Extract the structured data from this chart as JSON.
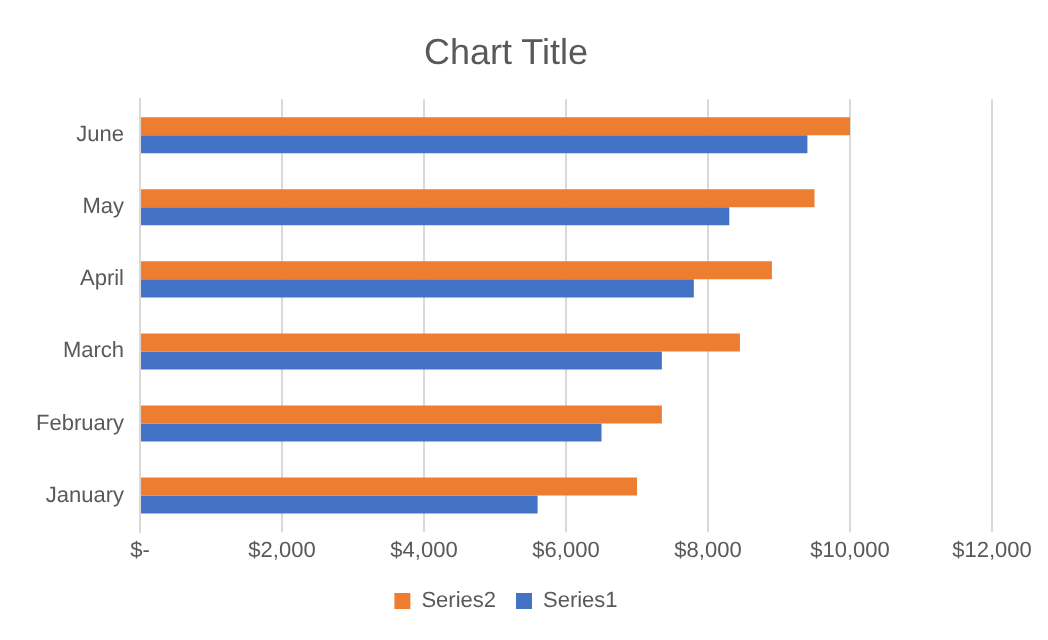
{
  "chart_data": {
    "type": "bar",
    "orientation": "horizontal",
    "title": "Chart Title",
    "categories": [
      "June",
      "May",
      "April",
      "March",
      "February",
      "January"
    ],
    "series": [
      {
        "name": "Series2",
        "color": "#ed7d31",
        "values": [
          10000,
          9500,
          8900,
          8450,
          7350,
          7000
        ]
      },
      {
        "name": "Series1",
        "color": "#4472c4",
        "values": [
          9400,
          8300,
          7800,
          7350,
          6500,
          5600
        ]
      }
    ],
    "xlim": [
      0,
      12000
    ],
    "xticks": [
      {
        "value": 0,
        "label": "$-"
      },
      {
        "value": 2000,
        "label": "$2,000"
      },
      {
        "value": 4000,
        "label": "$4,000"
      },
      {
        "value": 6000,
        "label": "$6,000"
      },
      {
        "value": 8000,
        "label": "$8,000"
      },
      {
        "value": 10000,
        "label": "$10,000"
      },
      {
        "value": 12000,
        "label": "$12,000"
      }
    ],
    "grid": "x",
    "legend": "bottom"
  }
}
